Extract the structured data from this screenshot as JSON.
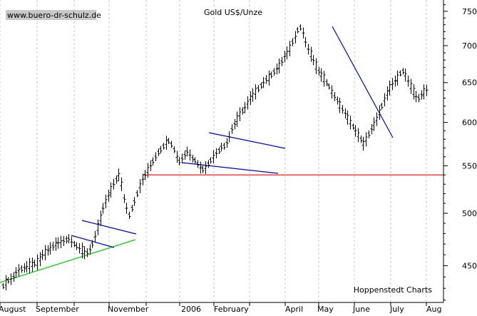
{
  "chart_data": {
    "type": "bar",
    "subtype": "ohlc",
    "title": "Gold US$/Unze",
    "watermark": "www.buero-dr-schulz.de",
    "source": "Hoppenstedt Charts",
    "y_axis": {
      "position": "right",
      "scale": "log",
      "range": [
        418,
        765
      ],
      "ticks": [
        450,
        500,
        550,
        600,
        650,
        700,
        750
      ]
    },
    "x_axis": {
      "labels": [
        "August",
        "September",
        "November",
        "2006",
        "February",
        "April",
        "May",
        "June",
        "July",
        "Aug"
      ]
    },
    "grid": "vertical-dashed",
    "colors": {
      "bars": "#000000",
      "support_line": "#00cc00",
      "channel_lines": "#0000cc",
      "horizontal_line": "#ff0000",
      "grid": "#c8c8c8",
      "watermark_bg": "#c8c8c8"
    },
    "horizontal_line": {
      "value": 540
    },
    "series": [
      {
        "values": [
          432,
          435,
          437,
          438,
          440,
          444,
          446,
          447,
          448,
          449,
          450,
          451,
          452,
          453,
          456,
          460,
          462,
          464,
          466,
          468,
          470,
          471,
          472,
          473,
          474,
          475,
          472,
          470,
          468,
          466,
          464,
          462,
          462,
          465,
          470,
          477,
          486,
          495,
          505,
          512,
          518,
          524,
          530,
          535,
          540,
          530,
          515,
          505,
          498,
          505,
          512,
          520,
          528,
          535,
          540,
          545,
          550,
          555,
          560,
          565,
          568,
          572,
          576,
          578,
          574,
          568,
          560,
          555,
          558,
          562,
          566,
          562,
          558,
          556,
          552,
          548,
          546,
          548,
          552,
          556,
          560,
          564,
          567,
          571,
          572,
          576,
          583,
          592,
          598,
          604,
          610,
          614,
          618,
          624,
          630,
          634,
          638,
          642,
          646,
          650,
          654,
          656,
          660,
          664,
          668,
          672,
          678,
          685,
          690,
          696,
          705,
          712,
          722,
          726,
          718,
          705,
          695,
          688,
          680,
          672,
          665,
          660,
          655,
          650,
          645,
          638,
          632,
          627,
          621,
          616,
          611,
          606,
          600,
          595,
          590,
          585,
          580,
          575,
          580,
          586,
          592,
          598,
          604,
          612,
          620,
          628,
          636,
          643,
          648,
          652,
          656,
          662,
          665,
          660,
          652,
          645,
          638,
          632,
          630,
          634,
          638,
          640
        ]
      }
    ]
  }
}
